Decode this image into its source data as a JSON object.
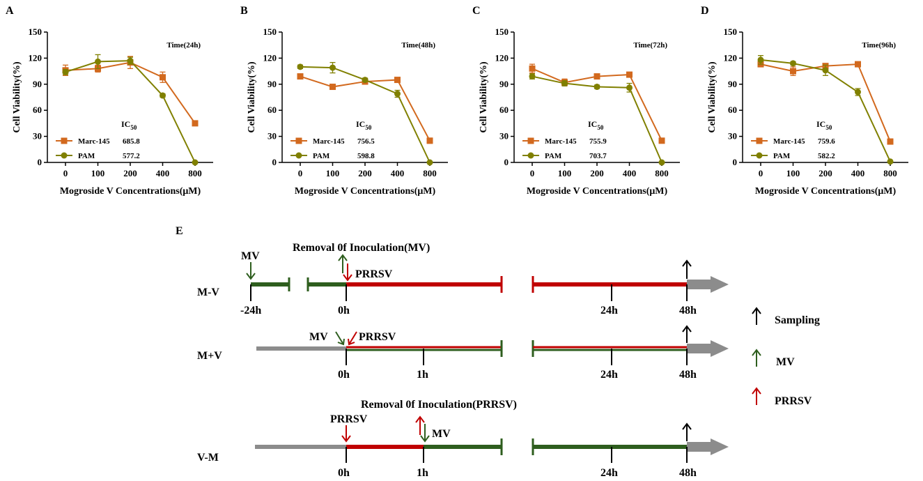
{
  "colors": {
    "marc": "#D2691E",
    "pam": "#808000",
    "red": "#C00000",
    "green": "#2E5E1E",
    "gray": "#8C8C8C",
    "black": "#000000"
  },
  "chart_data": [
    {
      "type": "line",
      "panel_label": "A",
      "annotation": "Time(24h)",
      "categories": [
        "0",
        "100",
        "200",
        "400",
        "800"
      ],
      "xlabel": "Mogroside V Concentrations(μM)",
      "ylabel": "Cell Viability(%)",
      "ylim": [
        0,
        150
      ],
      "yticks": [
        "0",
        "30",
        "60",
        "90",
        "120",
        "150"
      ],
      "ic50_label": "IC",
      "ic50_sub": "50",
      "series": [
        {
          "name": "Marc-145",
          "ic50": "685.8",
          "values": [
            106,
            108,
            115,
            98,
            45
          ],
          "errors": [
            6,
            4,
            7,
            6,
            2
          ]
        },
        {
          "name": "PAM",
          "ic50": "577.2",
          "values": [
            104,
            116,
            117,
            77,
            0
          ],
          "errors": [
            3,
            8,
            4,
            2,
            0
          ]
        }
      ]
    },
    {
      "type": "line",
      "panel_label": "B",
      "annotation": "Time(48h)",
      "categories": [
        "0",
        "100",
        "200",
        "400",
        "800"
      ],
      "xlabel": "Mogroside V Concentrations(μM)",
      "ylabel": "Cell Viability(%)",
      "ylim": [
        0,
        150
      ],
      "yticks": [
        "0",
        "30",
        "60",
        "90",
        "120",
        "150"
      ],
      "ic50_label": "IC",
      "ic50_sub": "50",
      "series": [
        {
          "name": "Marc-145",
          "ic50": "756.5",
          "values": [
            99,
            87,
            93,
            95,
            25
          ],
          "errors": [
            2,
            2,
            3,
            2,
            3
          ]
        },
        {
          "name": "PAM",
          "ic50": "598.8",
          "values": [
            110,
            109,
            95,
            79,
            0
          ],
          "errors": [
            2,
            6,
            2,
            4,
            0
          ]
        }
      ]
    },
    {
      "type": "line",
      "panel_label": "C",
      "annotation": "Time(72h)",
      "categories": [
        "0",
        "100",
        "200",
        "400",
        "800"
      ],
      "xlabel": "Mogroside V Concentrations(μM)",
      "ylabel": "Cell Viability(%)",
      "ylim": [
        0,
        150
      ],
      "yticks": [
        "0",
        "30",
        "60",
        "90",
        "120",
        "150"
      ],
      "ic50_label": "IC",
      "ic50_sub": "50",
      "series": [
        {
          "name": "Marc-145",
          "ic50": "755.9",
          "values": [
            108,
            92,
            99,
            101,
            25
          ],
          "errors": [
            5,
            4,
            2,
            2,
            2
          ]
        },
        {
          "name": "PAM",
          "ic50": "703.7",
          "values": [
            99,
            91,
            87,
            86,
            0
          ],
          "errors": [
            3,
            3,
            2,
            5,
            0
          ]
        }
      ]
    },
    {
      "type": "line",
      "panel_label": "D",
      "annotation": "Time(96h)",
      "categories": [
        "0",
        "100",
        "200",
        "400",
        "800"
      ],
      "xlabel": "Mogroside V Concentrations(μM)",
      "ylabel": "Cell Viability(%)",
      "ylim": [
        0,
        150
      ],
      "yticks": [
        "0",
        "30",
        "60",
        "90",
        "120",
        "150"
      ],
      "ic50_label": "IC",
      "ic50_sub": "50",
      "series": [
        {
          "name": "Marc-145",
          "ic50": "759.6",
          "values": [
            113,
            105,
            111,
            113,
            24
          ],
          "errors": [
            3,
            5,
            2,
            1,
            3
          ]
        },
        {
          "name": "PAM",
          "ic50": "582.2",
          "values": [
            118,
            114,
            106,
            81,
            1
          ],
          "errors": [
            5,
            2,
            6,
            4,
            0
          ]
        }
      ]
    }
  ],
  "schematic": {
    "panel_label": "E",
    "rows": [
      {
        "label": "M-V",
        "title": "Removal 0f Inoculation(MV)",
        "mv_label": "MV",
        "prrsv_label": "PRRSV",
        "ticks": [
          "-24h",
          "0h",
          "24h",
          "48h"
        ]
      },
      {
        "label": "M+V",
        "mv_label": "MV",
        "prrsv_label": "PRRSV",
        "ticks": [
          "0h",
          "1h",
          "24h",
          "48h"
        ]
      },
      {
        "label": "V-M",
        "title": "Removal 0f Inoculation(PRRSV)",
        "prrsv_label": "PRRSV",
        "mv_label": "MV",
        "ticks": [
          "0h",
          "1h",
          "24h",
          "48h"
        ]
      }
    ],
    "legend": [
      {
        "label": "Sampling",
        "color": "#000000"
      },
      {
        "label": "MV",
        "color": "#2E5E1E"
      },
      {
        "label": "PRRSV",
        "color": "#C00000"
      }
    ]
  }
}
